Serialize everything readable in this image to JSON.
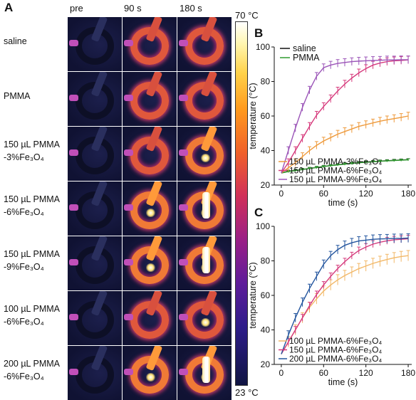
{
  "panel_a": {
    "letter": "A",
    "columns": [
      "pre",
      "90 s",
      "180 s"
    ],
    "rows": [
      [
        "saline"
      ],
      [
        "PMMA"
      ],
      [
        "150 µL PMMA",
        "-3%Fe₃O₄"
      ],
      [
        "150 µL PMMA",
        "-6%Fe₃O₄"
      ],
      [
        "150 µL PMMA",
        "-9%Fe₃O₄"
      ],
      [
        "100 µL PMMA",
        "-6%Fe₃O₄"
      ],
      [
        "200 µL PMMA",
        "-6%Fe₃O₄"
      ]
    ],
    "colorbar": {
      "max_label": "70 °C",
      "min_label": "23 °C"
    }
  },
  "chart_data": [
    {
      "panel": "B",
      "type": "line",
      "xlabel": "time (s)",
      "ylabel": "temperature (°C)",
      "xlim": [
        -10,
        185
      ],
      "ylim": [
        20,
        100
      ],
      "xticks": [
        0,
        60,
        120,
        180
      ],
      "yticks": [
        20,
        40,
        60,
        80,
        100
      ],
      "x": [
        0,
        10,
        20,
        30,
        40,
        50,
        60,
        70,
        80,
        90,
        100,
        110,
        120,
        130,
        140,
        150,
        160,
        170,
        180
      ],
      "series": [
        {
          "name": "saline",
          "color": "#111111",
          "values": [
            27,
            28,
            28.5,
            29,
            29.6,
            30.2,
            30.8,
            31.3,
            31.8,
            32.2,
            32.6,
            33,
            33.3,
            33.6,
            33.9,
            34.1,
            34.3,
            34.5,
            34.7
          ],
          "err": 0.6
        },
        {
          "name": "PMMA",
          "color": "#2e9a2e",
          "values": [
            27,
            27.8,
            28.4,
            29,
            29.6,
            30.2,
            30.7,
            31.2,
            31.7,
            32.1,
            32.5,
            32.9,
            33.2,
            33.5,
            33.8,
            34,
            34.2,
            34.4,
            34.6
          ],
          "err": 0.6
        },
        {
          "name": "150 µL PMMA-3%Fe₃O₄",
          "color": "#ee9a3c",
          "values": [
            27,
            30,
            33,
            36.5,
            40,
            43,
            45.5,
            47.5,
            49.5,
            51,
            52.5,
            54,
            55,
            56,
            57,
            57.8,
            58.5,
            59.2,
            60
          ],
          "err": 2.2
        },
        {
          "name": "150 µL PMMA-6%Fe₃O₄",
          "color": "#d63a7c",
          "values": [
            27,
            33,
            40,
            47,
            54,
            60.5,
            65.5,
            70,
            74.5,
            78.5,
            82,
            85,
            87.5,
            89.5,
            90.7,
            91.5,
            92,
            92.2,
            92.5
          ],
          "err": 2.2
        },
        {
          "name": "150 µL PMMA-9%Fe₃O₄",
          "color": "#9b55b8",
          "values": [
            27,
            40,
            53,
            65,
            75,
            83,
            88,
            89.5,
            90.5,
            91,
            91.5,
            91.8,
            92,
            92.2,
            92.3,
            92.5,
            92.5,
            92.6,
            92.6
          ],
          "err": 2.2
        }
      ],
      "legend_top": [
        "saline",
        "PMMA"
      ],
      "legend_bottom": [
        "150 µL PMMA-3%Fe₃O₄",
        "150 µL PMMA-6%Fe₃O₄",
        "150 µL PMMA-9%Fe₃O₄"
      ]
    },
    {
      "panel": "C",
      "type": "line",
      "xlabel": "time (s)",
      "ylabel": "temperature (°C)",
      "xlim": [
        -10,
        185
      ],
      "ylim": [
        20,
        100
      ],
      "xticks": [
        0,
        60,
        120,
        180
      ],
      "yticks": [
        20,
        40,
        60,
        80,
        100
      ],
      "x": [
        0,
        10,
        20,
        30,
        40,
        50,
        60,
        70,
        80,
        90,
        100,
        110,
        120,
        130,
        140,
        150,
        160,
        170,
        180
      ],
      "series": [
        {
          "name": "100 µL PMMA-6%Fe₃O₄",
          "color": "#f2b868",
          "values": [
            26,
            33,
            40,
            47,
            53,
            58,
            62.5,
            66,
            69,
            71.5,
            73.5,
            75.5,
            77,
            78.5,
            79.7,
            80.8,
            81.8,
            82.5,
            83
          ],
          "err": 3
        },
        {
          "name": "150 µL PMMA-6%Fe₃O₄",
          "color": "#d63a7c",
          "values": [
            26,
            33,
            40,
            47,
            54,
            60.5,
            66,
            71,
            75.5,
            79.5,
            83,
            86,
            88,
            89.7,
            90.8,
            91.6,
            92.2,
            92.5,
            92.8
          ],
          "err": 2
        },
        {
          "name": "200 µL PMMA-6%Fe₃O₄",
          "color": "#23559e",
          "values": [
            26,
            37,
            47,
            56,
            64,
            71,
            78,
            83,
            86.5,
            89,
            90.5,
            91.5,
            92,
            92.5,
            92.7,
            92.8,
            93,
            93,
            93.2
          ],
          "err": 2.5
        }
      ],
      "legend_bottom": [
        "100 µL PMMA-6%Fe₃O₄",
        "150 µL PMMA-6%Fe₃O₄",
        "200 µL PMMA-6%Fe₃O₄"
      ]
    }
  ],
  "panel_letters": {
    "b": "B",
    "c": "C"
  }
}
